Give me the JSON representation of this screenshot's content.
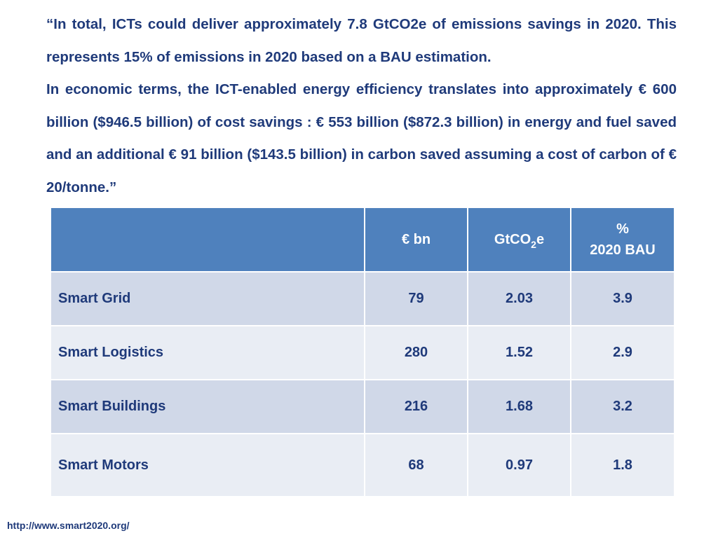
{
  "quote": {
    "paragraph1": "“In total, ICTs could deliver approximately 7.8 GtCO2e of emissions savings in 2020. This represents 15% of emissions in 2020 based on a BAU estimation.",
    "paragraph2": "In economic terms, the ICT-enabled energy efficiency translates into approximately € 600 billion ($946.5 billion) of cost savings : € 553 billion ($872.3 billion) in energy and fuel saved and an additional € 91 billion ($143.5 billion) in carbon saved assuming a cost of carbon of € 20/tonne.”"
  },
  "table": {
    "headers": {
      "col0": "",
      "col1": "€  bn",
      "col2_main": "GtCO",
      "col2_sub": "2",
      "col2_tail": "e",
      "col3_line1": "%",
      "col3_line2": "2020 BAU"
    },
    "rows": [
      {
        "name": "Smart Grid",
        "eur_bn": "79",
        "gtco2e": "2.03",
        "pct_bau": "3.9"
      },
      {
        "name": "Smart Logistics",
        "eur_bn": "280",
        "gtco2e": "1.52",
        "pct_bau": "2.9"
      },
      {
        "name": "Smart Buildings",
        "eur_bn": "216",
        "gtco2e": "1.68",
        "pct_bau": "3.2"
      },
      {
        "name": "Smart Motors",
        "eur_bn": "68",
        "gtco2e": "0.97",
        "pct_bau": "1.8"
      }
    ]
  },
  "source_link": "http://www.smart2020.org/",
  "colors": {
    "text": "#1f3a7a",
    "header_bg": "#4f81bd",
    "row_dark": "#d0d8e8",
    "row_light": "#e9edf4"
  }
}
